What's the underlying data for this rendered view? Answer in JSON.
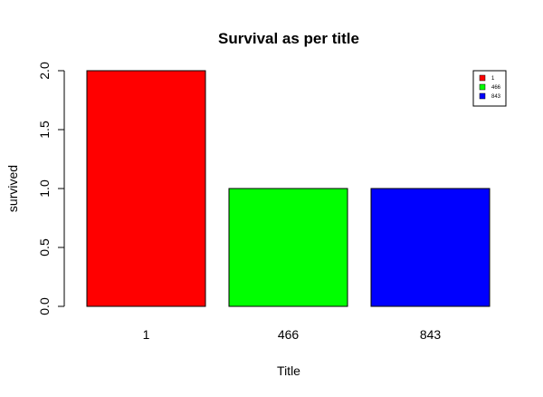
{
  "chart_data": {
    "type": "bar",
    "title": "Survival as per title",
    "xlabel": "Title",
    "ylabel": "survived",
    "categories": [
      "1",
      "466",
      "843"
    ],
    "values": [
      2,
      1,
      1
    ],
    "colors": [
      "#ff0000",
      "#00ff00",
      "#0000ff"
    ],
    "ylim": [
      0,
      2
    ],
    "yticks": [
      0.0,
      0.5,
      1.0,
      1.5,
      2.0
    ],
    "ytick_labels": [
      "0.0",
      "0.5",
      "1.0",
      "1.5",
      "2.0"
    ],
    "grid": false,
    "legend": {
      "placement": "top-right",
      "entries": [
        "1",
        "466",
        "843"
      ]
    }
  }
}
